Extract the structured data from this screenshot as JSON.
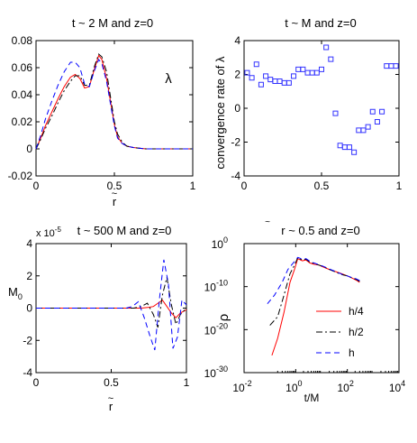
{
  "chart_data": [
    {
      "type": "line",
      "title": "t ~ 2 M  and  z=0",
      "xlabel": "r",
      "xlabel_accent": "~",
      "ylabel": "",
      "annotation": "λ",
      "xlim": [
        0,
        1
      ],
      "ylim": [
        -0.02,
        0.08
      ],
      "xticks": [
        0,
        0.5,
        1
      ],
      "yticks": [
        -0.02,
        0,
        0.02,
        0.04,
        0.06,
        0.08
      ],
      "xtick_labels": [
        "0",
        "0.5",
        "1"
      ],
      "ytick_labels": [
        "-0.02",
        "0",
        "0.02",
        "0.04",
        "0.06",
        "0.08"
      ],
      "series": [
        {
          "color": "#ff0000",
          "dash": "",
          "x": [
            0,
            0.03,
            0.06,
            0.1,
            0.14,
            0.18,
            0.22,
            0.25,
            0.28,
            0.31,
            0.34,
            0.37,
            0.4,
            0.42,
            0.45,
            0.48,
            0.5,
            0.52,
            0.55,
            0.58,
            0.62,
            0.7,
            0.8,
            0.9,
            1.0
          ],
          "y": [
            0,
            0.008,
            0.017,
            0.027,
            0.037,
            0.046,
            0.053,
            0.055,
            0.052,
            0.045,
            0.046,
            0.058,
            0.069,
            0.066,
            0.052,
            0.032,
            0.018,
            0.009,
            0.004,
            0.002,
            0.001,
            0,
            0,
            0,
            0
          ]
        },
        {
          "color": "#000000",
          "dash": "7,3,2,3",
          "x": [
            0,
            0.03,
            0.06,
            0.1,
            0.14,
            0.18,
            0.22,
            0.25,
            0.28,
            0.31,
            0.34,
            0.37,
            0.4,
            0.42,
            0.45,
            0.48,
            0.5,
            0.52,
            0.55,
            0.58,
            0.62,
            0.7,
            0.8,
            0.9,
            1.0
          ],
          "y": [
            0,
            0.007,
            0.015,
            0.024,
            0.034,
            0.043,
            0.05,
            0.054,
            0.054,
            0.047,
            0.047,
            0.06,
            0.07,
            0.068,
            0.057,
            0.035,
            0.02,
            0.011,
            0.005,
            0.002,
            0.001,
            0,
            0,
            0,
            0
          ]
        },
        {
          "color": "#0000ff",
          "dash": "6,4",
          "x": [
            0,
            0.03,
            0.06,
            0.1,
            0.14,
            0.18,
            0.22,
            0.25,
            0.28,
            0.31,
            0.34,
            0.37,
            0.4,
            0.42,
            0.45,
            0.48,
            0.5,
            0.52,
            0.55,
            0.58,
            0.62,
            0.7,
            0.8,
            0.9,
            1.0
          ],
          "y": [
            0,
            0.01,
            0.022,
            0.035,
            0.047,
            0.057,
            0.064,
            0.064,
            0.06,
            0.048,
            0.046,
            0.057,
            0.066,
            0.063,
            0.05,
            0.03,
            0.017,
            0.008,
            0.004,
            0.002,
            0.001,
            0,
            0,
            0,
            0
          ]
        }
      ]
    },
    {
      "type": "scatter",
      "title": "t ~ M  and  z=0",
      "xlabel": "",
      "ylabel": "convergence rate of λ",
      "xlim": [
        0,
        1
      ],
      "ylim": [
        -4,
        4
      ],
      "xticks": [
        0,
        0.5,
        1
      ],
      "yticks": [
        -4,
        -2,
        0,
        2,
        4
      ],
      "xtick_labels": [
        "0",
        "0.5",
        "1"
      ],
      "ytick_labels": [
        "-4",
        "-2",
        "0",
        "2",
        "4"
      ],
      "series": [
        {
          "color": "#3333ff",
          "marker": "square",
          "x": [
            0.02,
            0.05,
            0.08,
            0.11,
            0.14,
            0.17,
            0.2,
            0.23,
            0.26,
            0.29,
            0.32,
            0.35,
            0.38,
            0.41,
            0.44,
            0.47,
            0.5,
            0.53,
            0.56,
            0.59,
            0.62,
            0.65,
            0.68,
            0.71,
            0.74,
            0.77,
            0.8,
            0.83,
            0.86,
            0.89,
            0.92,
            0.95,
            0.98
          ],
          "y": [
            2.1,
            1.8,
            2.6,
            1.4,
            1.9,
            1.7,
            1.6,
            1.6,
            1.5,
            1.5,
            1.9,
            2.3,
            2.3,
            2.1,
            2.1,
            2.1,
            2.3,
            3.6,
            2.9,
            -0.3,
            -2.2,
            -2.3,
            -2.3,
            -2.6,
            -1.3,
            -1.3,
            -1.1,
            -0.2,
            -0.8,
            -0.2,
            2.5,
            2.5,
            2.5
          ]
        }
      ]
    },
    {
      "type": "line",
      "title": "t ~ 500 M  and  z=0",
      "xlabel": "r",
      "xlabel_accent": "~",
      "ylabel": "M",
      "ylabel_sub": "0",
      "exponent": "x 10",
      "exponent_power": "-5",
      "xlim": [
        0,
        1
      ],
      "ylim": [
        -4,
        4
      ],
      "xticks": [
        0,
        0.5,
        1
      ],
      "yticks": [
        -4,
        -2,
        0,
        2,
        4
      ],
      "xtick_labels": [
        "0",
        "0.5",
        "1"
      ],
      "ytick_labels": [
        "-4",
        "-2",
        "0",
        "2",
        "4"
      ],
      "series": [
        {
          "color": "#ff0000",
          "dash": "",
          "x": [
            0,
            0.1,
            0.2,
            0.3,
            0.4,
            0.5,
            0.6,
            0.65,
            0.7,
            0.75,
            0.78,
            0.81,
            0.84,
            0.87,
            0.9,
            0.93,
            0.96,
            1.0
          ],
          "y": [
            0,
            0,
            0,
            0,
            0,
            0,
            0,
            0,
            0,
            0.05,
            0.1,
            0.3,
            0.5,
            0.1,
            -0.3,
            -0.6,
            -0.3,
            -0.1
          ]
        },
        {
          "color": "#000000",
          "dash": "7,3,2,3",
          "x": [
            0,
            0.1,
            0.2,
            0.3,
            0.4,
            0.5,
            0.6,
            0.65,
            0.7,
            0.74,
            0.78,
            0.81,
            0.84,
            0.87,
            0.9,
            0.93,
            0.96,
            1.0
          ],
          "y": [
            0,
            0,
            0,
            0,
            0,
            0,
            0,
            0,
            0.1,
            0.3,
            -0.4,
            -1.2,
            0.8,
            1.9,
            0.2,
            -1.0,
            -0.4,
            0
          ]
        },
        {
          "color": "#0000ff",
          "dash": "6,4",
          "x": [
            0,
            0.1,
            0.2,
            0.3,
            0.4,
            0.5,
            0.6,
            0.64,
            0.68,
            0.72,
            0.76,
            0.79,
            0.82,
            0.85,
            0.88,
            0.91,
            0.94,
            0.97,
            1.0
          ],
          "y": [
            0,
            0,
            0,
            0,
            0,
            0,
            0,
            0.1,
            0.4,
            -0.6,
            -1.8,
            -2.6,
            0.5,
            3.0,
            1.5,
            -2.5,
            -1.8,
            0.5,
            0.2
          ]
        }
      ]
    },
    {
      "type": "line",
      "title": "r  ~ 0.5  and  z=0",
      "title_accent": "~",
      "xlabel": "t/M",
      "ylabel": "ρ",
      "xscale": "log",
      "yscale": "log",
      "xlim": [
        0.01,
        10000
      ],
      "ylim": [
        1e-30,
        1
      ],
      "xtick_powers": [
        "-2",
        "0",
        "2",
        "4"
      ],
      "ytick_powers": [
        "0",
        "-10",
        "-20",
        "-30"
      ],
      "legend_position": "right",
      "series": [
        {
          "name": "h/4",
          "color": "#ff0000",
          "dash": "",
          "x": [
            0.12,
            0.2,
            0.35,
            0.6,
            0.9,
            1.2,
            1.8,
            2.5,
            3.5,
            5,
            8,
            12,
            20,
            35,
            60,
            100,
            150,
            220,
            300
          ],
          "y": [
            -26,
            -22,
            -16,
            -9,
            -6,
            -3.5,
            -4,
            -3.8,
            -4.5,
            -4.8,
            -5,
            -5.5,
            -6,
            -6.5,
            -7,
            -7.5,
            -8,
            -8.5,
            -9
          ]
        },
        {
          "name": "h/2",
          "color": "#000000",
          "dash": "7,3,2,3",
          "x": [
            0.1,
            0.2,
            0.35,
            0.6,
            0.9,
            1.2,
            1.8,
            2.5,
            3.5,
            5,
            8,
            12,
            20,
            35,
            60,
            100,
            150,
            220,
            300
          ],
          "y": [
            -19,
            -17,
            -12,
            -7,
            -5,
            -3.3,
            -3.8,
            -3.6,
            -4.3,
            -4.6,
            -5,
            -5.4,
            -6,
            -6.6,
            -7.2,
            -7.5,
            -8,
            -8.3,
            -8.8
          ]
        },
        {
          "name": "h",
          "color": "#0000ff",
          "dash": "6,4",
          "x": [
            0.08,
            0.15,
            0.3,
            0.5,
            0.8,
            1.2,
            1.8,
            2.5,
            3.5,
            5,
            8,
            12,
            20,
            35,
            60,
            100,
            150,
            220,
            300
          ],
          "y": [
            -14,
            -12,
            -9,
            -6,
            -4.5,
            -3.2,
            -3.6,
            -3.5,
            -4.1,
            -4.5,
            -4.9,
            -5.3,
            -5.9,
            -6.5,
            -7.1,
            -7.5,
            -7.9,
            -8.2,
            -8.6
          ]
        }
      ]
    }
  ]
}
